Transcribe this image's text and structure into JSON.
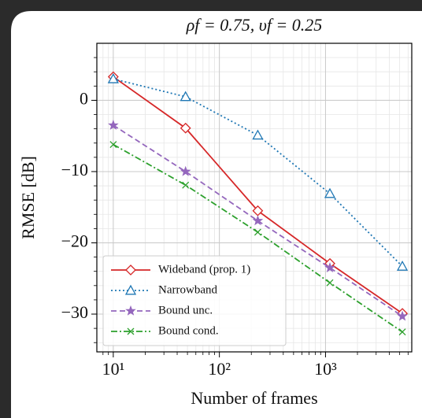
{
  "chart_data": {
    "type": "line",
    "title": "ρf = 0.75, υf = 0.25",
    "x_label": "Number of frames",
    "y_label": "RMSE [dB]",
    "x_scale": "log",
    "x": [
      10,
      48,
      230,
      1100,
      5300
    ],
    "xlim": [
      7,
      6500
    ],
    "xticks": [
      {
        "value": 10,
        "label": "10¹"
      },
      {
        "value": 100,
        "label": "10²"
      },
      {
        "value": 1000,
        "label": "10³"
      }
    ],
    "ylim": [
      -35.3,
      8
    ],
    "yticks": [
      {
        "value": -30,
        "label": "−30"
      },
      {
        "value": -20,
        "label": "−20"
      },
      {
        "value": -10,
        "label": "−10"
      },
      0
    ],
    "grid": true,
    "minor_grid": true,
    "legend": "lower left",
    "series": [
      {
        "name": "Wideband (prop. 1)",
        "color": "#d62728",
        "dash": "solid",
        "marker": "diamond",
        "values": [
          3.3,
          -3.9,
          -15.5,
          -22.9,
          -29.9
        ]
      },
      {
        "name": "Narrowband",
        "color": "#1f77b4",
        "dash": "dotted",
        "marker": "triangle",
        "values": [
          3.0,
          0.5,
          -4.9,
          -13.1,
          -23.3
        ]
      },
      {
        "name": "Bound unc.",
        "color": "#9467bd",
        "dash": "dashed",
        "marker": "star",
        "values": [
          -3.5,
          -10.0,
          -16.9,
          -23.5,
          -30.3
        ]
      },
      {
        "name": "Bound cond.",
        "color": "#2ca02c",
        "dash": "dashdot",
        "marker": "x",
        "values": [
          -6.2,
          -11.9,
          -18.5,
          -25.6,
          -32.5
        ]
      }
    ]
  }
}
